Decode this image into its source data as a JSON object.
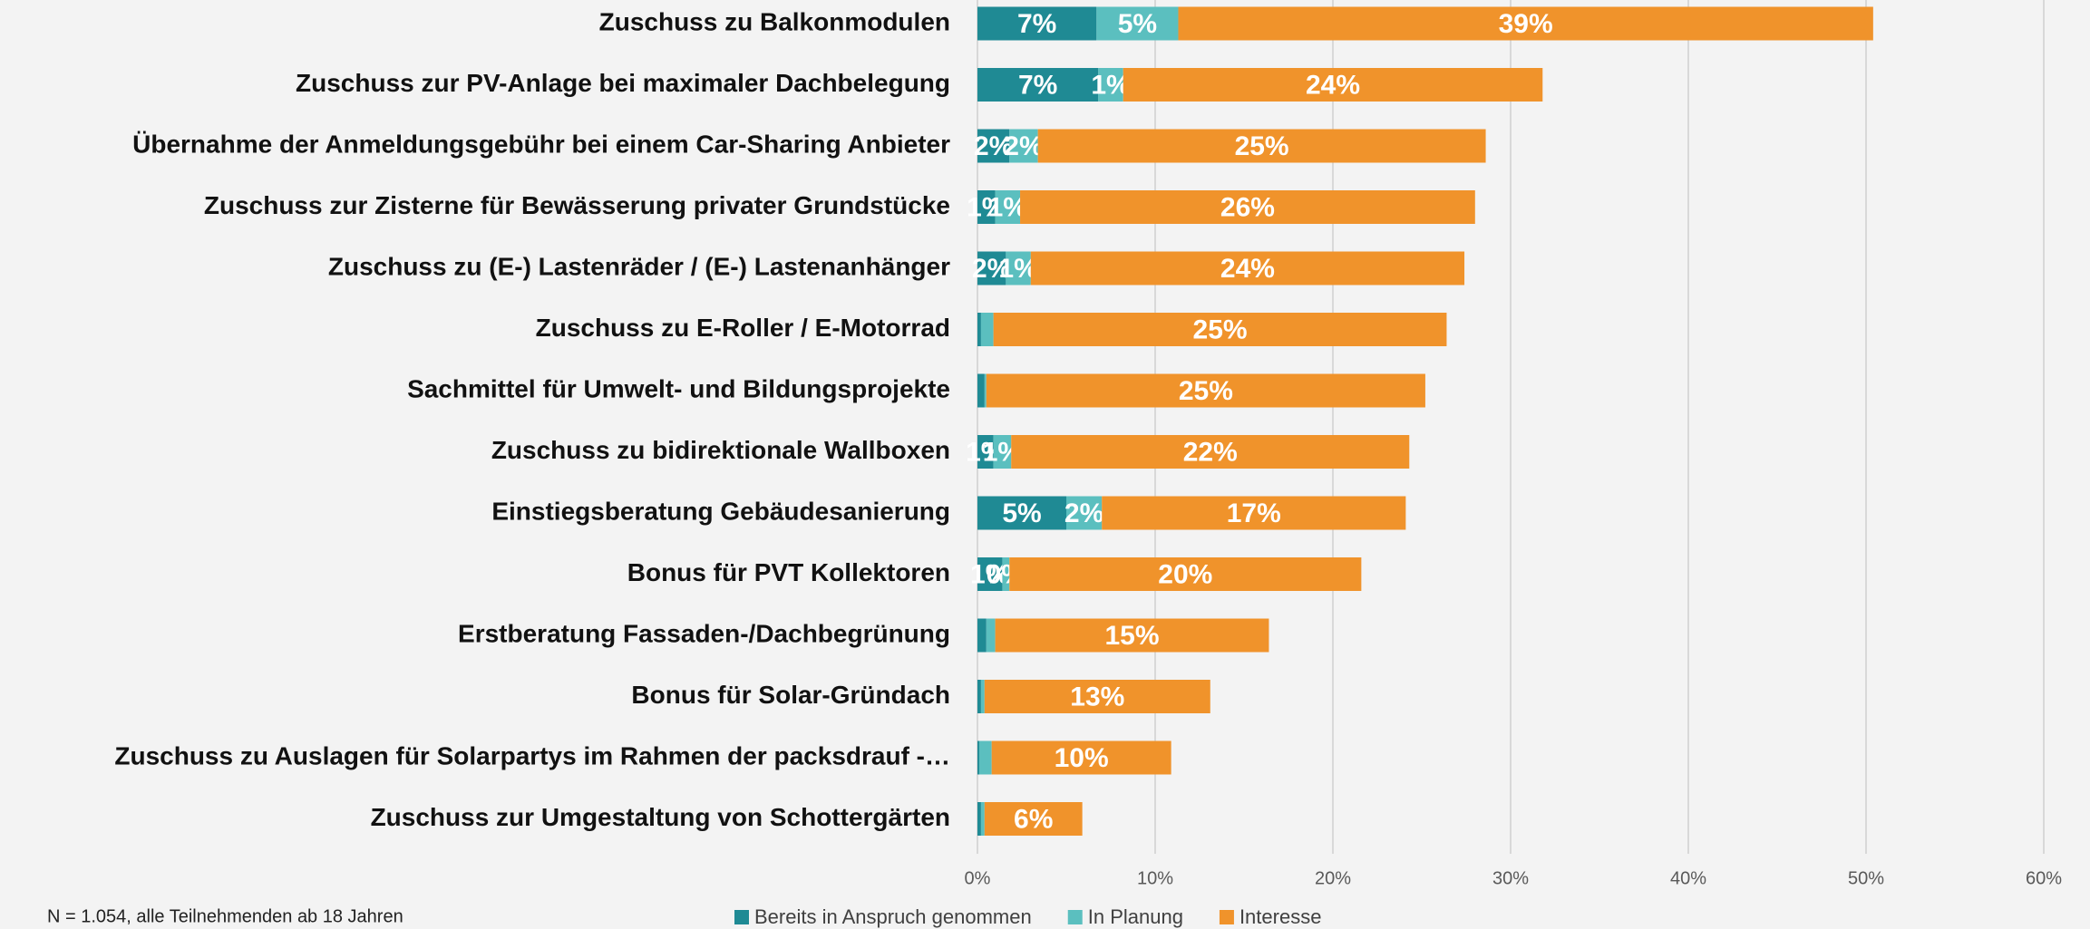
{
  "chart_data": {
    "type": "stacked_barh",
    "categories": [
      "Zuschuss zu Balkonmodulen",
      "Zuschuss zur PV-Anlage bei maximaler Dachbelegung",
      "Übernahme der Anmeldungsgebühr bei einem Car-Sharing Anbieter",
      "Zuschuss zur Zisterne für Bewässerung privater Grundstücke",
      "Zuschuss zu (E-) Lastenräder / (E-) Lastenanhänger",
      "Zuschuss zu E-Roller / E-Motorrad",
      "Sachmittel für Umwelt- und Bildungsprojekte",
      "Zuschuss zu bidirektionale Wallboxen",
      "Einstiegsberatung Gebäudesanierung",
      "Bonus für PVT Kollektoren",
      "Erstberatung Fassaden-/Dachbegrünung",
      "Bonus für Solar-Gründach",
      "Zuschuss zu Auslagen für Solarpartys im Rahmen der packsdrauf -…",
      "Zuschuss zur Umgestaltung von Schottergärten"
    ],
    "series": [
      {
        "name": "Bereits in Anspruch genommen",
        "color": "#1f8a94",
        "values": [
          6.7,
          6.8,
          1.8,
          1.0,
          1.6,
          0.2,
          0.4,
          0.9,
          5.0,
          1.4,
          0.5,
          0.2,
          0.1,
          0.2
        ],
        "value_labels": [
          "7%",
          "7%",
          "2%",
          "1%",
          "2%",
          null,
          null,
          "1%",
          "5%",
          "1%",
          null,
          null,
          null,
          null
        ]
      },
      {
        "name": "In Planung",
        "color": "#5bbfbf",
        "values": [
          4.6,
          1.4,
          1.6,
          1.4,
          1.4,
          0.7,
          0.1,
          1.0,
          2.0,
          0.4,
          0.5,
          0.2,
          0.7,
          0.2
        ],
        "value_labels": [
          "5%",
          "1%",
          "2%",
          "1%",
          "1%",
          null,
          null,
          "1%",
          "2%",
          "0%",
          null,
          null,
          null,
          null
        ]
      },
      {
        "name": "Interesse",
        "color": "#f0932b",
        "values": [
          39.1,
          23.6,
          25.2,
          25.6,
          24.4,
          25.5,
          24.7,
          22.4,
          17.1,
          19.8,
          15.4,
          12.7,
          10.1,
          5.5
        ],
        "value_labels": [
          "39%",
          "24%",
          "25%",
          "26%",
          "24%",
          "25%",
          "25%",
          "22%",
          "17%",
          "20%",
          "15%",
          "13%",
          "10%",
          "6%"
        ]
      }
    ],
    "xlim": [
      0,
      60
    ],
    "xticks": [
      {
        "value": 0,
        "label": "0%"
      },
      {
        "value": 10,
        "label": "10%"
      },
      {
        "value": 20,
        "label": "20%"
      },
      {
        "value": 30,
        "label": "30%"
      },
      {
        "value": 40,
        "label": "40%"
      },
      {
        "value": 50,
        "label": "50%"
      },
      {
        "value": 60,
        "label": "60%"
      }
    ],
    "grid": true,
    "legend": "bottom",
    "note": "N = 1.054, alle Teilnehmenden ab 18 Jahren"
  }
}
